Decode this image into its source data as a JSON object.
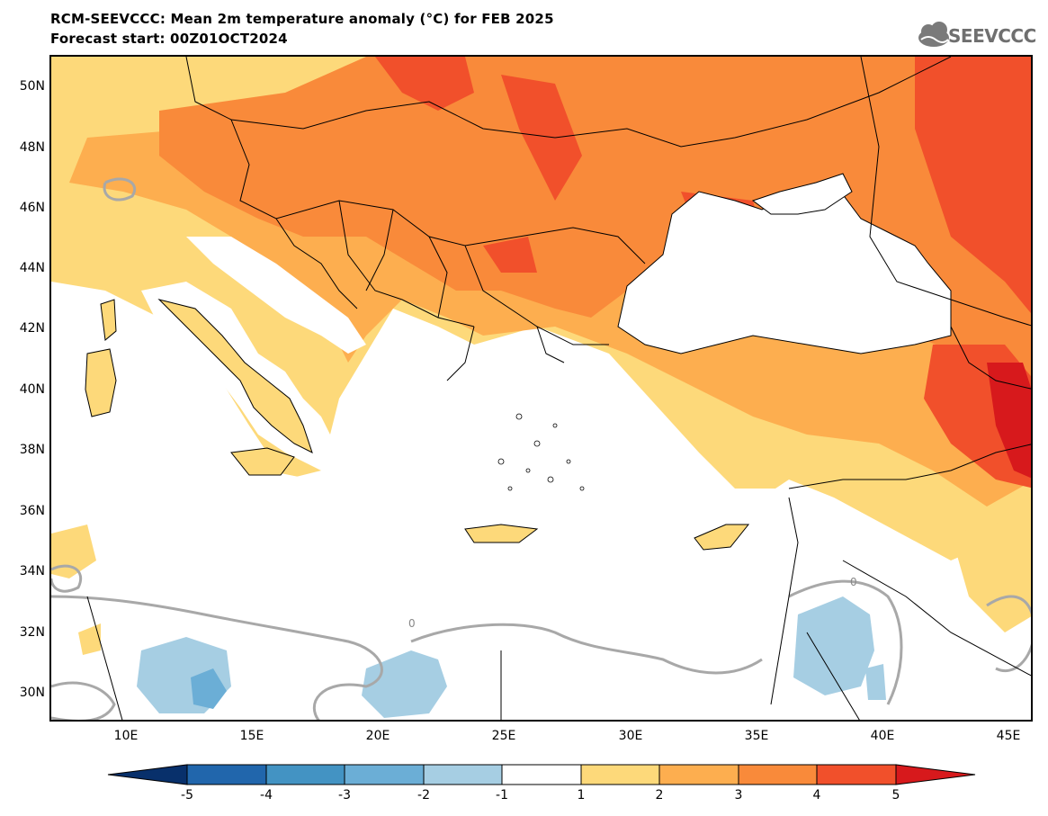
{
  "header": {
    "title_line1": "RCM-SEEVCCC: Mean 2m temperature anomaly (°C) for FEB 2025",
    "title_line2": "Forecast start: 00Z01OCT2024",
    "logo_text": "SEEVCCC"
  },
  "map": {
    "lat_labels": [
      "50N",
      "48N",
      "46N",
      "44N",
      "42N",
      "40N",
      "38N",
      "36N",
      "34N",
      "32N",
      "30N"
    ],
    "lon_labels": [
      "10E",
      "15E",
      "20E",
      "25E",
      "30E",
      "35E",
      "40E",
      "45E"
    ],
    "contour_label": "0"
  },
  "colorbar": {
    "labels": [
      "-5",
      "-4",
      "-3",
      "-2",
      "-1",
      "1",
      "2",
      "3",
      "4",
      "5"
    ],
    "colors": [
      "#08306b",
      "#2166ac",
      "#4393c3",
      "#6baed6",
      "#a6cee3",
      "#ffffff",
      "#fdd97a",
      "#fdae4f",
      "#f98a3a",
      "#f1502b",
      "#d7191c"
    ]
  }
}
